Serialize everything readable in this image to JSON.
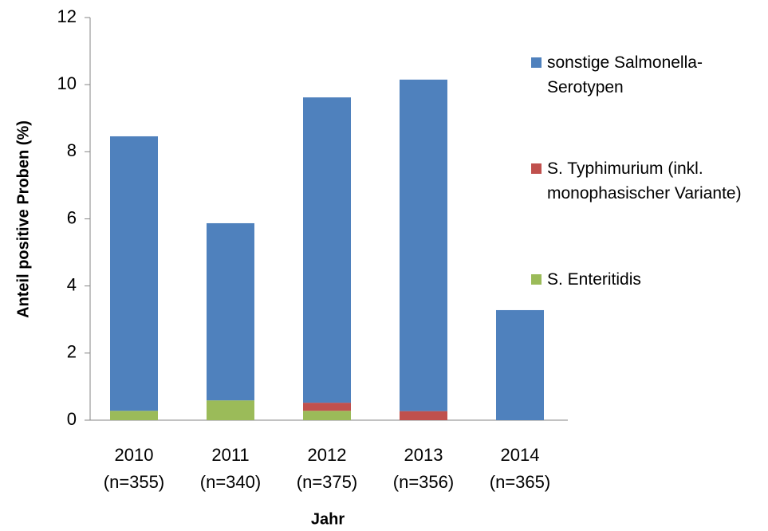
{
  "chart_data": {
    "type": "stacked_bar",
    "xlabel": "Jahr",
    "ylabel": "Anteil positive Proben (%)",
    "categories": [
      [
        "2010",
        "(n=355)"
      ],
      [
        "2011",
        "(n=340)"
      ],
      [
        "2012",
        "(n=375)"
      ],
      [
        "2013",
        "(n=356)"
      ],
      [
        "2014",
        "(n=365)"
      ]
    ],
    "series": [
      {
        "name": "S. Enteritidis",
        "color": "#9bbb59",
        "values": [
          0.28,
          0.59,
          0.28,
          0,
          0
        ]
      },
      {
        "name": "S. Typhimurium (inkl. monophasischer Variante)",
        "color": "#c0504d",
        "values": [
          0,
          0,
          0.24,
          0.27,
          0
        ]
      },
      {
        "name": "sonstige Salmonella-Serotypen",
        "color": "#4f81bd",
        "values": [
          8.18,
          5.28,
          9.1,
          9.88,
          3.28
        ]
      }
    ],
    "ylim": [
      0,
      12
    ],
    "yticks": [
      0,
      2,
      4,
      6,
      8,
      10,
      12
    ],
    "legend": "right"
  }
}
